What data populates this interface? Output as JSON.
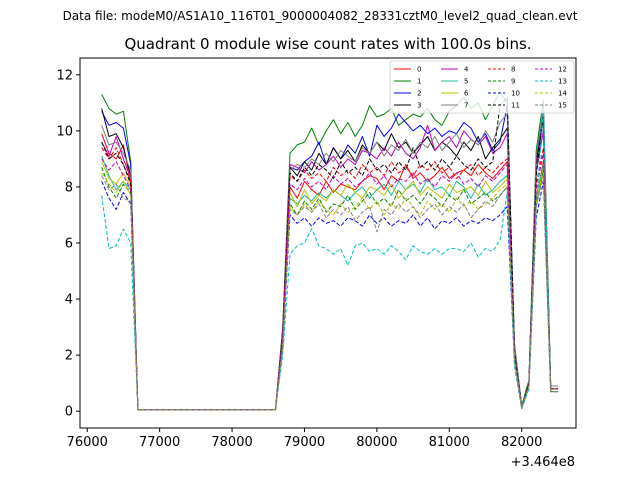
{
  "page": {
    "suptitle": "Data file: modeM0/AS1A10_116T01_9000004082_28331cztM0_level2_quad_clean.evt"
  },
  "chart_data": {
    "type": "line",
    "title": "Quadrant 0 module wise count rates with 100.0s bins.",
    "xlabel": "",
    "ylabel": "",
    "x_offset_label": "+3.464e8",
    "xlim": [
      75900,
      82750
    ],
    "ylim": [
      -0.6,
      12.6
    ],
    "xticks": [
      76000,
      77000,
      78000,
      79000,
      80000,
      81000,
      82000
    ],
    "yticks": [
      0,
      2,
      4,
      6,
      8,
      10,
      12
    ],
    "legend_location": "upper right",
    "x": [
      76200,
      76300,
      76400,
      76500,
      76600,
      76700,
      76800,
      76900,
      77000,
      77100,
      77200,
      77300,
      77400,
      77500,
      77600,
      77700,
      77800,
      77900,
      78000,
      78100,
      78200,
      78300,
      78400,
      78500,
      78600,
      78700,
      78800,
      78900,
      79000,
      79100,
      79200,
      79300,
      79400,
      79500,
      79600,
      79700,
      79800,
      79900,
      80000,
      80100,
      80200,
      80300,
      80400,
      80500,
      80600,
      80700,
      80800,
      80900,
      81000,
      81100,
      81200,
      81300,
      81400,
      81500,
      81600,
      81700,
      81800,
      81900,
      82000,
      82100,
      82200,
      82300,
      82400,
      82500
    ],
    "series": [
      {
        "name": "0",
        "color": "#ff0000",
        "dash": "solid",
        "values": [
          9.9,
          9.2,
          9.0,
          9.5,
          8.1,
          0.05,
          0.05,
          0.05,
          0.05,
          0.05,
          0.05,
          0.05,
          0.05,
          0.05,
          0.05,
          0.05,
          0.05,
          0.05,
          0.05,
          0.05,
          0.05,
          0.05,
          0.05,
          0.05,
          0.05,
          2.6,
          8.0,
          7.6,
          8.2,
          7.9,
          7.7,
          8.2,
          7.8,
          8.1,
          8.0,
          7.9,
          8.2,
          8.4,
          8.3,
          7.9,
          8.4,
          8.2,
          8.8,
          8.3,
          8.5,
          8.2,
          8.4,
          8.7,
          8.3,
          8.5,
          8.6,
          8.4,
          8.8,
          8.5,
          8.3,
          8.6,
          8.9,
          2.0,
          0.1,
          0.9,
          7.6,
          8.9,
          0.8,
          0.8
        ]
      },
      {
        "name": "1",
        "color": "#008000",
        "dash": "solid",
        "values": [
          11.3,
          10.8,
          10.6,
          10.7,
          8.9,
          0.05,
          0.05,
          0.05,
          0.05,
          0.05,
          0.05,
          0.05,
          0.05,
          0.05,
          0.05,
          0.05,
          0.05,
          0.05,
          0.05,
          0.05,
          0.05,
          0.05,
          0.05,
          0.05,
          0.05,
          3.0,
          9.2,
          9.5,
          9.6,
          10.1,
          9.5,
          10.0,
          10.4,
          9.9,
          10.3,
          9.8,
          10.2,
          10.9,
          10.5,
          10.6,
          10.8,
          10.2,
          10.4,
          10.6,
          10.5,
          10.8,
          10.4,
          10.2,
          10.7,
          10.9,
          11.2,
          10.8,
          11.0,
          10.4,
          10.9,
          11.4,
          11.0,
          2.4,
          0.2,
          1.1,
          9.3,
          11.1,
          0.9,
          0.9
        ]
      },
      {
        "name": "2",
        "color": "#0000ff",
        "dash": "solid",
        "values": [
          10.7,
          10.2,
          10.3,
          10.1,
          8.8,
          0.05,
          0.05,
          0.05,
          0.05,
          0.05,
          0.05,
          0.05,
          0.05,
          0.05,
          0.05,
          0.05,
          0.05,
          0.05,
          0.05,
          0.05,
          0.05,
          0.05,
          0.05,
          0.05,
          0.05,
          2.9,
          8.7,
          8.6,
          8.9,
          9.1,
          9.6,
          8.8,
          9.4,
          9.0,
          9.5,
          9.2,
          9.8,
          9.1,
          10.2,
          9.8,
          10.1,
          10.6,
          10.3,
          10.0,
          10.2,
          9.9,
          10.1,
          9.8,
          10.0,
          9.9,
          10.3,
          10.1,
          9.6,
          9.9,
          9.3,
          9.6,
          10.9,
          2.3,
          0.2,
          1.0,
          9.0,
          10.7,
          0.9,
          0.9
        ]
      },
      {
        "name": "3",
        "color": "#000000",
        "dash": "solid",
        "values": [
          10.8,
          9.8,
          9.9,
          9.4,
          8.4,
          0.05,
          0.05,
          0.05,
          0.05,
          0.05,
          0.05,
          0.05,
          0.05,
          0.05,
          0.05,
          0.05,
          0.05,
          0.05,
          0.05,
          0.05,
          0.05,
          0.05,
          0.05,
          0.05,
          0.05,
          2.8,
          8.7,
          8.4,
          8.9,
          8.6,
          9.2,
          8.8,
          9.4,
          9.0,
          9.3,
          8.9,
          9.5,
          9.2,
          9.6,
          9.3,
          9.9,
          9.4,
          9.6,
          9.2,
          9.5,
          9.8,
          9.3,
          9.6,
          9.4,
          9.1,
          9.6,
          9.3,
          9.8,
          9.0,
          9.4,
          9.7,
          10.1,
          2.2,
          0.1,
          1.0,
          8.8,
          10.4,
          0.8,
          0.8
        ]
      },
      {
        "name": "4",
        "color": "#bf00bf",
        "dash": "solid",
        "values": [
          9.6,
          9.1,
          9.8,
          9.0,
          8.3,
          0.05,
          0.05,
          0.05,
          0.05,
          0.05,
          0.05,
          0.05,
          0.05,
          0.05,
          0.05,
          0.05,
          0.05,
          0.05,
          0.05,
          0.05,
          0.05,
          0.05,
          0.05,
          0.05,
          0.05,
          2.8,
          8.8,
          8.7,
          8.5,
          8.9,
          8.6,
          8.8,
          9.1,
          8.7,
          9.0,
          8.8,
          9.3,
          9.2,
          9.0,
          9.4,
          9.1,
          9.6,
          9.2,
          9.0,
          9.4,
          10.2,
          9.3,
          9.6,
          9.8,
          9.4,
          10.0,
          9.7,
          9.5,
          9.8,
          9.2,
          9.4,
          9.9,
          2.2,
          0.1,
          1.0,
          8.5,
          10.0,
          0.8,
          0.8
        ]
      },
      {
        "name": "5",
        "color": "#1abc9c",
        "dash": "solid",
        "values": [
          9.1,
          8.4,
          7.9,
          8.2,
          7.9,
          0.05,
          0.05,
          0.05,
          0.05,
          0.05,
          0.05,
          0.05,
          0.05,
          0.05,
          0.05,
          0.05,
          0.05,
          0.05,
          0.05,
          0.05,
          0.05,
          0.05,
          0.05,
          0.05,
          0.05,
          2.5,
          7.6,
          7.4,
          7.7,
          7.5,
          7.8,
          7.6,
          7.9,
          7.7,
          7.5,
          7.8,
          8.0,
          7.6,
          7.9,
          8.1,
          7.7,
          8.2,
          7.9,
          8.1,
          7.8,
          8.3,
          7.9,
          8.0,
          7.7,
          8.2,
          8.0,
          7.6,
          8.1,
          7.7,
          7.9,
          8.2,
          8.4,
          1.9,
          0.1,
          0.9,
          7.6,
          8.8,
          0.8,
          0.8
        ]
      },
      {
        "name": "6",
        "color": "#bfbf00",
        "dash": "solid",
        "values": [
          8.9,
          8.3,
          8.1,
          8.5,
          8.0,
          0.05,
          0.05,
          0.05,
          0.05,
          0.05,
          0.05,
          0.05,
          0.05,
          0.05,
          0.05,
          0.05,
          0.05,
          0.05,
          0.05,
          0.05,
          0.05,
          0.05,
          0.05,
          0.05,
          0.05,
          2.4,
          7.8,
          7.3,
          7.9,
          7.4,
          7.7,
          7.5,
          7.9,
          7.7,
          8.1,
          7.8,
          7.6,
          8.0,
          7.9,
          7.7,
          8.1,
          7.6,
          7.9,
          8.2,
          7.7,
          8.0,
          7.8,
          7.6,
          8.1,
          7.8,
          7.9,
          8.0,
          7.7,
          8.2,
          7.8,
          8.0,
          8.3,
          1.9,
          0.1,
          0.9,
          7.5,
          8.7,
          0.8,
          0.8
        ]
      },
      {
        "name": "7",
        "color": "#7f7f7f",
        "dash": "solid",
        "values": [
          10.2,
          9.5,
          9.6,
          9.2,
          8.6,
          0.05,
          0.05,
          0.05,
          0.05,
          0.05,
          0.05,
          0.05,
          0.05,
          0.05,
          0.05,
          0.05,
          0.05,
          0.05,
          0.05,
          0.05,
          0.05,
          0.05,
          0.05,
          0.05,
          0.05,
          2.8,
          8.6,
          8.8,
          8.7,
          9.0,
          8.8,
          9.2,
          8.9,
          9.3,
          9.1,
          8.9,
          9.4,
          9.2,
          9.6,
          9.1,
          9.5,
          9.3,
          9.7,
          9.2,
          9.6,
          9.4,
          9.8,
          9.3,
          9.6,
          9.9,
          9.4,
          9.7,
          9.5,
          10.0,
          9.6,
          10.3,
          10.6,
          2.3,
          0.2,
          1.0,
          9.1,
          10.8,
          0.9,
          0.9
        ]
      },
      {
        "name": "8",
        "color": "#ff0000",
        "dash": "dashed",
        "values": [
          9.4,
          9.0,
          9.4,
          8.8,
          8.2,
          0.05,
          0.05,
          0.05,
          0.05,
          0.05,
          0.05,
          0.05,
          0.05,
          0.05,
          0.05,
          0.05,
          0.05,
          0.05,
          0.05,
          0.05,
          0.05,
          0.05,
          0.05,
          0.05,
          0.05,
          2.7,
          8.4,
          8.2,
          8.6,
          8.3,
          8.5,
          8.2,
          8.7,
          8.4,
          8.6,
          8.3,
          8.8,
          8.5,
          8.7,
          8.4,
          8.9,
          8.5,
          8.7,
          8.4,
          8.8,
          8.6,
          8.9,
          8.5,
          8.7,
          8.3,
          8.6,
          8.8,
          8.4,
          8.7,
          8.5,
          8.8,
          9.0,
          2.0,
          0.1,
          1.0,
          8.1,
          9.4,
          0.8,
          0.8
        ]
      },
      {
        "name": "9",
        "color": "#008000",
        "dash": "dashed",
        "values": [
          8.7,
          8.0,
          7.6,
          8.1,
          7.8,
          0.05,
          0.05,
          0.05,
          0.05,
          0.05,
          0.05,
          0.05,
          0.05,
          0.05,
          0.05,
          0.05,
          0.05,
          0.05,
          0.05,
          0.05,
          0.05,
          0.05,
          0.05,
          0.05,
          0.05,
          2.4,
          7.4,
          7.0,
          7.5,
          7.2,
          7.6,
          7.1,
          7.4,
          7.3,
          7.7,
          7.2,
          7.5,
          7.8,
          7.4,
          7.6,
          7.3,
          7.9,
          7.5,
          7.7,
          7.4,
          7.8,
          7.6,
          7.3,
          7.7,
          7.5,
          7.9,
          7.4,
          7.6,
          7.8,
          7.5,
          7.7,
          8.0,
          1.8,
          0.1,
          0.9,
          7.3,
          8.6,
          0.7,
          0.7
        ]
      },
      {
        "name": "10",
        "color": "#0000ff",
        "dash": "dashed",
        "values": [
          8.2,
          7.6,
          7.2,
          7.8,
          7.4,
          0.05,
          0.05,
          0.05,
          0.05,
          0.05,
          0.05,
          0.05,
          0.05,
          0.05,
          0.05,
          0.05,
          0.05,
          0.05,
          0.05,
          0.05,
          0.05,
          0.05,
          0.05,
          0.05,
          0.05,
          2.2,
          7.0,
          6.7,
          6.9,
          6.6,
          6.9,
          6.7,
          6.8,
          6.6,
          6.9,
          6.8,
          6.6,
          7.0,
          6.7,
          6.9,
          6.6,
          6.8,
          6.7,
          7.0,
          6.6,
          6.9,
          6.5,
          6.8,
          6.7,
          6.9,
          6.6,
          6.8,
          6.7,
          6.9,
          6.8,
          7.0,
          7.3,
          1.7,
          0.1,
          0.8,
          6.9,
          8.2,
          0.7,
          0.7
        ]
      },
      {
        "name": "11",
        "color": "#000000",
        "dash": "dashed",
        "values": [
          9.6,
          9.0,
          9.2,
          8.8,
          8.1,
          0.05,
          0.05,
          0.05,
          0.05,
          0.05,
          0.05,
          0.05,
          0.05,
          0.05,
          0.05,
          0.05,
          0.05,
          0.05,
          0.05,
          0.05,
          0.05,
          0.05,
          0.05,
          0.05,
          0.05,
          2.7,
          8.5,
          8.2,
          8.7,
          8.4,
          8.8,
          8.6,
          8.3,
          8.9,
          8.5,
          8.7,
          8.4,
          9.0,
          8.6,
          8.8,
          8.5,
          8.9,
          8.6,
          9.4,
          8.7,
          8.9,
          8.6,
          9.0,
          8.7,
          9.1,
          8.8,
          8.6,
          9.0,
          8.7,
          8.9,
          10.9,
          11.2,
          2.1,
          0.1,
          1.0,
          8.4,
          10.5,
          0.8,
          0.8
        ]
      },
      {
        "name": "12",
        "color": "#bf00bf",
        "dash": "dashed",
        "values": [
          9.0,
          8.6,
          8.9,
          8.4,
          7.9,
          0.05,
          0.05,
          0.05,
          0.05,
          0.05,
          0.05,
          0.05,
          0.05,
          0.05,
          0.05,
          0.05,
          0.05,
          0.05,
          0.05,
          0.05,
          0.05,
          0.05,
          0.05,
          0.05,
          0.05,
          2.6,
          8.1,
          7.9,
          8.3,
          8.0,
          8.2,
          7.9,
          8.4,
          8.1,
          8.3,
          8.0,
          8.2,
          8.5,
          8.1,
          8.4,
          8.0,
          8.3,
          8.2,
          8.5,
          8.1,
          8.3,
          8.0,
          8.4,
          8.2,
          8.5,
          8.1,
          8.3,
          8.0,
          8.4,
          8.2,
          8.5,
          8.8,
          1.9,
          0.1,
          0.9,
          7.9,
          9.2,
          0.8,
          0.8
        ]
      },
      {
        "name": "13",
        "color": "#00bfbf",
        "dash": "dashed",
        "values": [
          7.7,
          5.8,
          5.9,
          6.5,
          6.0,
          0.05,
          0.05,
          0.05,
          0.05,
          0.05,
          0.05,
          0.05,
          0.05,
          0.05,
          0.05,
          0.05,
          0.05,
          0.05,
          0.05,
          0.05,
          0.05,
          0.05,
          0.05,
          0.05,
          0.05,
          2.0,
          5.6,
          5.9,
          6.0,
          6.5,
          5.9,
          5.8,
          5.6,
          5.8,
          5.2,
          5.9,
          6.0,
          5.7,
          5.8,
          5.6,
          5.9,
          5.7,
          5.4,
          5.9,
          5.7,
          5.6,
          5.8,
          5.6,
          5.8,
          5.8,
          5.7,
          6.0,
          5.5,
          5.8,
          5.7,
          6.1,
          7.8,
          1.6,
          0.1,
          0.8,
          7.2,
          10.8,
          0.7,
          0.7
        ]
      },
      {
        "name": "14",
        "color": "#bfbf00",
        "dash": "dashed",
        "values": [
          8.5,
          8.1,
          7.8,
          8.2,
          7.7,
          0.05,
          0.05,
          0.05,
          0.05,
          0.05,
          0.05,
          0.05,
          0.05,
          0.05,
          0.05,
          0.05,
          0.05,
          0.05,
          0.05,
          0.05,
          0.05,
          0.05,
          0.05,
          0.05,
          0.05,
          2.3,
          7.3,
          7.0,
          7.4,
          7.1,
          7.5,
          7.2,
          7.0,
          7.4,
          7.1,
          7.3,
          7.6,
          7.2,
          7.5,
          7.0,
          7.4,
          7.2,
          7.6,
          7.3,
          7.0,
          7.5,
          7.2,
          7.4,
          7.1,
          7.6,
          7.3,
          7.5,
          7.2,
          7.4,
          7.6,
          7.9,
          8.1,
          1.8,
          0.1,
          0.9,
          7.4,
          8.5,
          0.7,
          0.7
        ]
      },
      {
        "name": "15",
        "color": "#7f7f7f",
        "dash": "dashed",
        "values": [
          8.4,
          7.9,
          8.1,
          7.6,
          7.5,
          0.05,
          0.05,
          0.05,
          0.05,
          0.05,
          0.05,
          0.05,
          0.05,
          0.05,
          0.05,
          0.05,
          0.05,
          0.05,
          0.05,
          0.05,
          0.05,
          0.05,
          0.05,
          0.05,
          0.05,
          2.3,
          7.2,
          7.0,
          7.3,
          7.1,
          7.4,
          6.9,
          7.2,
          7.0,
          7.3,
          6.8,
          7.1,
          7.3,
          6.4,
          7.2,
          7.0,
          7.4,
          7.1,
          7.3,
          6.9,
          7.2,
          7.4,
          7.0,
          7.3,
          7.1,
          7.4,
          6.9,
          7.2,
          7.5,
          7.3,
          7.7,
          8.0,
          1.8,
          0.1,
          0.9,
          7.3,
          8.4,
          0.7,
          0.7
        ]
      }
    ]
  }
}
